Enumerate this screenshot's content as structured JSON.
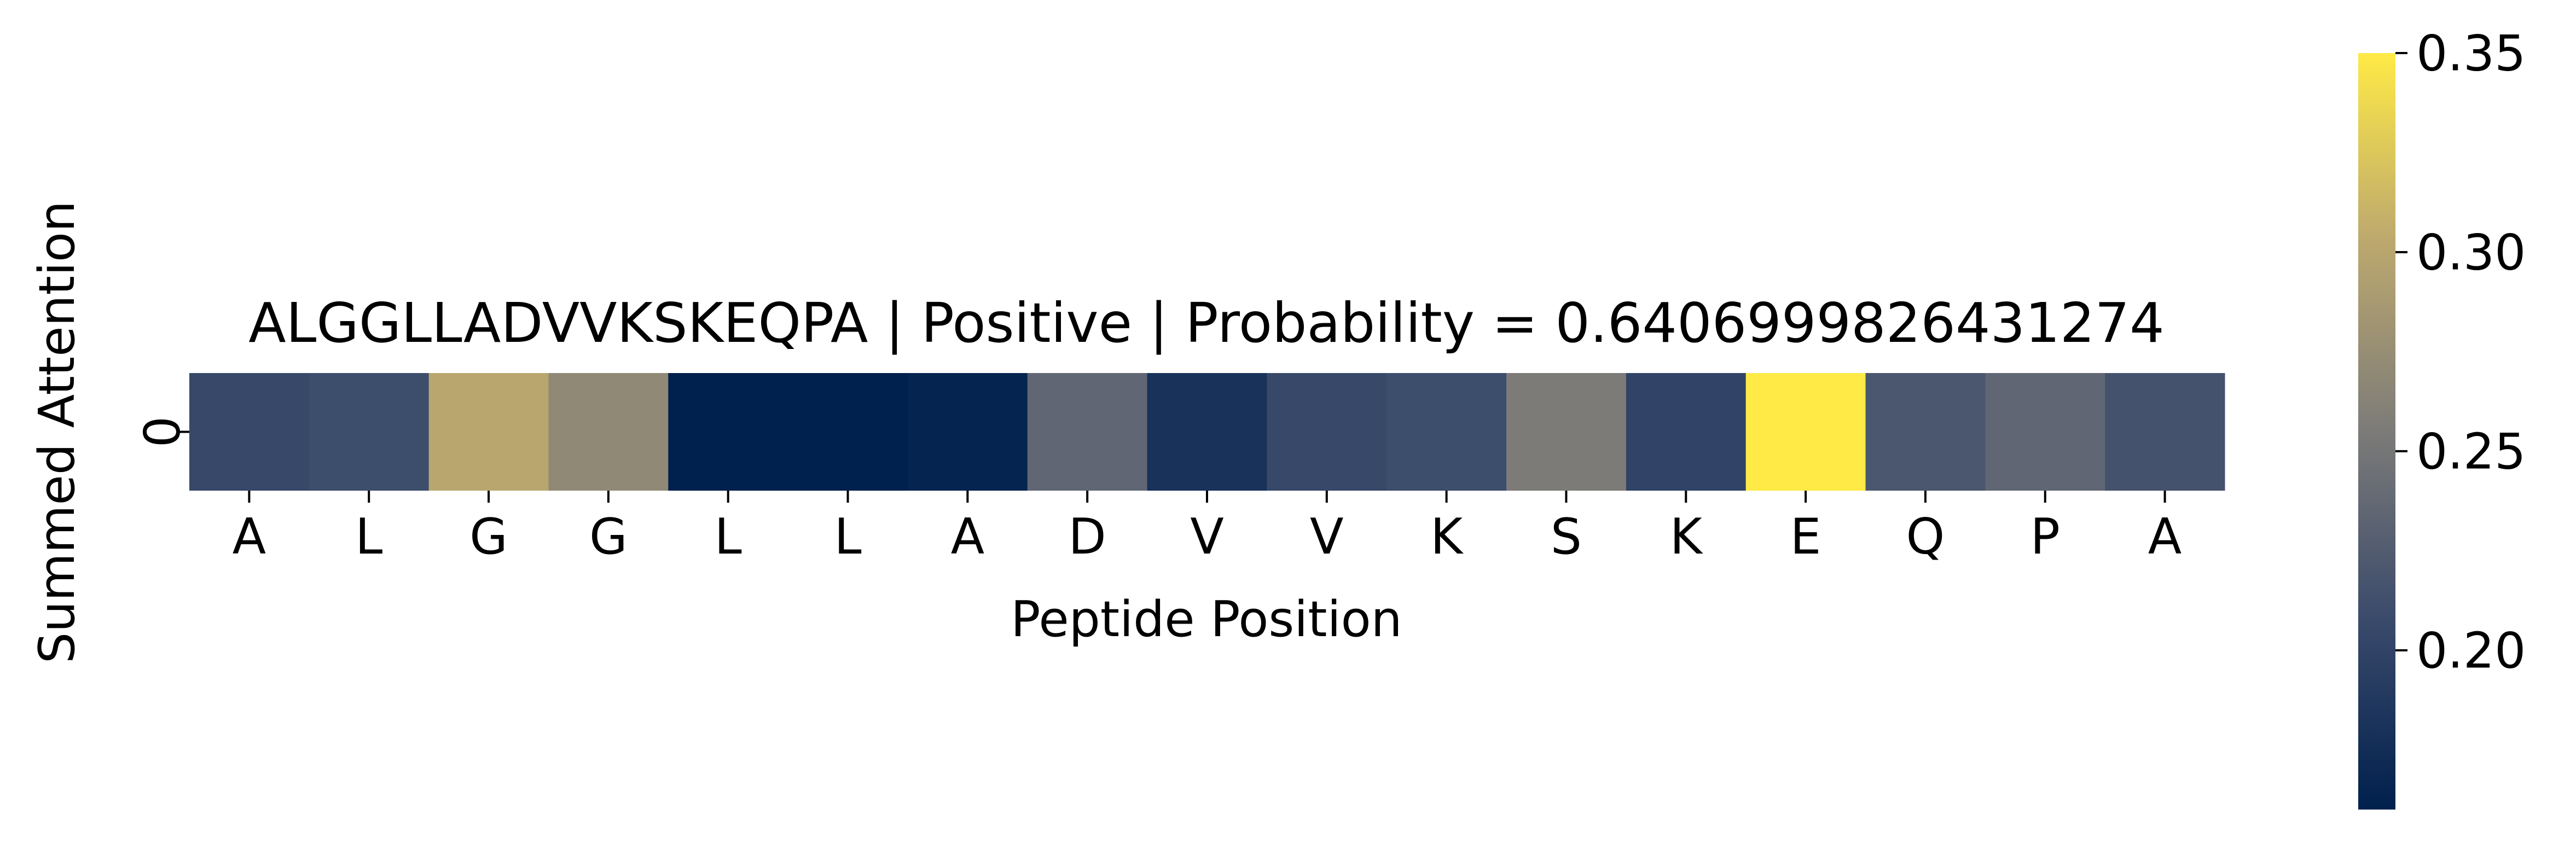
{
  "chart_data": {
    "type": "heatmap",
    "title": "ALGGLLADVVKSKEQPA | Positive | Probability = 0.6406999826431274",
    "xlabel": "Peptide Position",
    "ylabel": "Summed Attention",
    "x_categories": [
      "A",
      "L",
      "G",
      "G",
      "L",
      "L",
      "A",
      "D",
      "V",
      "V",
      "K",
      "S",
      "K",
      "E",
      "Q",
      "P",
      "A"
    ],
    "y_categories": [
      "0"
    ],
    "values": [
      [
        0.205,
        0.21,
        0.3,
        0.27,
        0.16,
        0.16,
        0.165,
        0.235,
        0.18,
        0.205,
        0.21,
        0.255,
        0.2,
        0.35,
        0.22,
        0.235,
        0.215
      ]
    ],
    "colormap": "cividis",
    "colorbar": {
      "range": [
        0.16,
        0.35
      ],
      "ticks": [
        "0.20",
        "0.25",
        "0.30",
        "0.35"
      ],
      "tick_values": [
        0.2,
        0.25,
        0.3,
        0.35
      ]
    },
    "legend": "none",
    "grid": false
  }
}
